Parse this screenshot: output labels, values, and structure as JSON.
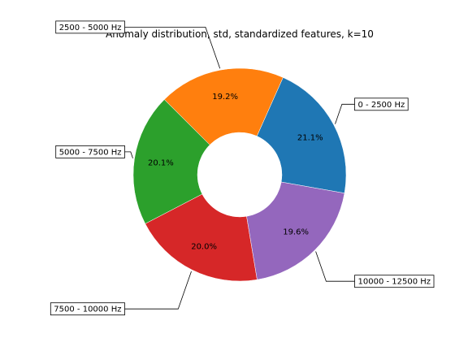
{
  "chart_data": {
    "type": "pie",
    "title": "Anomaly distribution, std, standardized features, k=10",
    "donut": true,
    "categories": [
      "0 - 2500 Hz",
      "2500 - 5000 Hz",
      "5000 - 7500 Hz",
      "7500 - 10000 Hz",
      "10000 - 12500 Hz"
    ],
    "values": [
      21.1,
      19.2,
      20.1,
      20.0,
      19.6
    ],
    "value_labels": [
      "21.1%",
      "19.2%",
      "20.1%",
      "20.0%",
      "19.6%"
    ],
    "colors": [
      "#1f77b4",
      "#ff7f0e",
      "#2ca02c",
      "#d62728",
      "#9467bd"
    ]
  }
}
